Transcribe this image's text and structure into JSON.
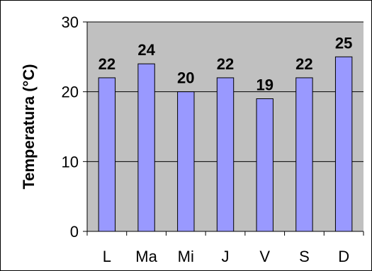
{
  "chart_data": {
    "type": "bar",
    "categories": [
      "L",
      "Ma",
      "Mi",
      "J",
      "V",
      "S",
      "D"
    ],
    "values": [
      22,
      24,
      20,
      22,
      19,
      22,
      25
    ],
    "title": "",
    "xlabel": "",
    "ylabel": "Temperatura (°C)",
    "ylim": [
      0,
      30
    ],
    "yticks": [
      0,
      10,
      20,
      30
    ],
    "grid": true,
    "data_labels": true,
    "colors": {
      "plot_background": "#c0c0c0",
      "bar_fill": "#9999ff",
      "bar_stroke": "#000000",
      "gridline": "#000000"
    }
  }
}
